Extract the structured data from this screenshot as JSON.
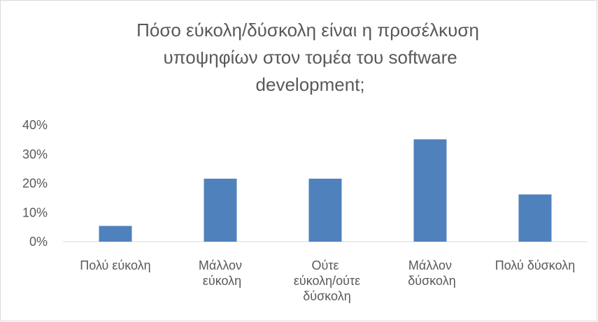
{
  "chart_data": {
    "type": "bar",
    "title": "Πόσο εύκολη/δύσκολη είναι η προσέλκυση υποψηφίων στον τομέα του software development;",
    "categories": [
      "Πολύ εύκολη",
      "Μάλλον εύκολη",
      "Ούτε εύκολη/ούτε δύσκολη",
      "Μάλλον δύσκολη",
      "Πολύ δύσκολη"
    ],
    "values": [
      5.4,
      21.6,
      21.6,
      35.1,
      16.2
    ],
    "color": "#4f81bd",
    "ylim": [
      0,
      40
    ],
    "yticks": [
      {
        "value": 0,
        "label": "0%"
      },
      {
        "value": 10,
        "label": "10%"
      },
      {
        "value": 20,
        "label": "20%"
      },
      {
        "value": 30,
        "label": "30%"
      },
      {
        "value": 40,
        "label": "40%"
      }
    ],
    "grid": false
  }
}
